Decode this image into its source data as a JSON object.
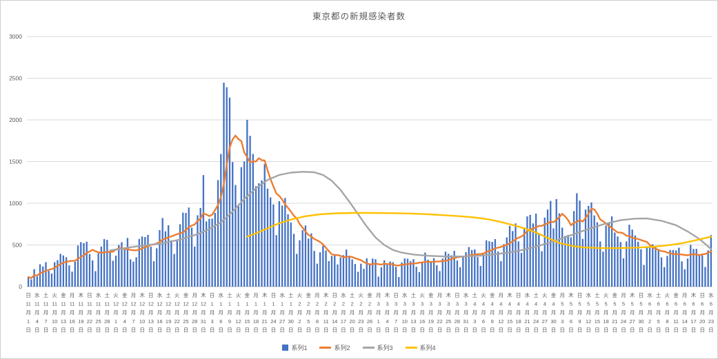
{
  "chart_data": {
    "type": "bar",
    "title": "東京都の新規感染者数",
    "legend_position": "bottom",
    "grid": "horizontal",
    "ylim": [
      0,
      3000
    ],
    "y_axis": {
      "ticks": [
        "0",
        "500",
        "1000",
        "1500",
        "2000",
        "2500",
        "3000"
      ]
    },
    "x_tick_labels": [
      "日|11|月|1|日",
      "水|11|月|4|日",
      "土|11|月|7|日",
      "火|11|月|10|日",
      "金|11|月|13|日",
      "月|11|月|16|日",
      "木|11|月|19|日",
      "日|11|月|22|日",
      "水|11|月|25|日",
      "土|11|月|28|日",
      "火|12|月|1|日",
      "金|12|月|4|日",
      "月|12|月|7|日",
      "木|12|月|10|日",
      "日|12|月|13|日",
      "水|12|月|16|日",
      "土|12|月|19|日",
      "火|12|月|22|日",
      "金|12|月|25|日",
      "月|12|月|28|日",
      "木|12|月|31|日",
      "日|1|月|3|日",
      "水|1|月|6|日",
      "土|1|月|9|日",
      "火|1|月|12|日",
      "金|1|月|15|日",
      "月|1|月|18|日",
      "木|1|月|21|日",
      "日|1|月|24|日",
      "水|1|月|27|日",
      "土|1|月|30|日",
      "火|2|月|2|日",
      "金|2|月|5|日",
      "月|2|月|8|日",
      "木|2|月|11|日",
      "日|2|月|14|日",
      "水|2|月|17|日",
      "土|2|月|20|日",
      "火|2|月|23|日",
      "金|2|月|26|日",
      "月|3|月|1|日",
      "木|3|月|4|日",
      "日|3|月|7|日",
      "水|3|月|10|日",
      "土|3|月|13|日",
      "火|3|月|16|日",
      "金|3|月|19|日",
      "月|3|月|22|日",
      "木|3|月|25|日",
      "日|3|月|28|日",
      "水|3|月|31|日",
      "土|4|月|3|日",
      "火|4|月|6|日",
      "金|4|月|9|日",
      "月|4|月|12|日",
      "木|4|月|15|日",
      "日|4|月|18|日",
      "水|4|月|21|日",
      "土|4|月|24|日",
      "火|4|月|27|日",
      "金|4|月|30|日",
      "月|5|月|3|日",
      "木|5|月|6|日",
      "日|5|月|9|日",
      "水|5|月|12|日",
      "土|5|月|15|日",
      "火|5|月|18|日",
      "金|5|月|21|日",
      "月|5|月|24|日",
      "木|5|月|27|日",
      "日|5|月|30|日",
      "水|6|月|2|日",
      "土|6|月|5|日",
      "火|6|月|8|日",
      "金|6|月|11|日",
      "月|6|月|14|日",
      "木|6|月|17|日",
      "日|6|月|20|日",
      "水|6|月|23|日"
    ],
    "x_tick_interval_days": 3,
    "series": [
      {
        "name": "系列1",
        "type": "bar",
        "color": "#4472C4",
        "values": [
          116,
          87,
          209,
          122,
          269,
          242,
          294,
          189,
          157,
          293,
          317,
          393,
          374,
          352,
          255,
          180,
          298,
          493,
          534,
          522,
          539,
          391,
          314,
          186,
          401,
          481,
          570,
          561,
          418,
          311,
          372,
          500,
          533,
          449,
          584,
          327,
          299,
          352,
          572,
          602,
          595,
          621,
          480,
          305,
          460,
          678,
          822,
          664,
          736,
          556,
          392,
          563,
          748,
          888,
          884,
          949,
          708,
          481,
          856,
          944,
          1337,
          783,
          814,
          816,
          884,
          1278,
          1591,
          2447,
          2392,
          2268,
          1494,
          1219,
          970,
          1433,
          1502,
          2001,
          1809,
          1592,
          1204,
          1240,
          1274,
          1471,
          1175,
          1070,
          986,
          618,
          1026,
          973,
          1064,
          868,
          769,
          633,
          393,
          556,
          676,
          734,
          577,
          639,
          429,
          276,
          412,
          491,
          434,
          307,
          369,
          371,
          266,
          350,
          378,
          445,
          353,
          327,
          272,
          178,
          275,
          213,
          340,
          270,
          337,
          329,
          121,
          232,
          316,
          279,
          301,
          293,
          237,
          116,
          290,
          340,
          335,
          304,
          330,
          239,
          175,
          300,
          409,
          323,
          303,
          342,
          256,
          187,
          337,
          420,
          394,
          376,
          430,
          313,
          234,
          364,
          414,
          475,
          440,
          446,
          355,
          249,
          399,
          555,
          545,
          537,
          570,
          421,
          306,
          510,
          591,
          729,
          667,
          759,
          543,
          405,
          711,
          843,
          861,
          759,
          876,
          635,
          425,
          828,
          925,
          1027,
          698,
          1050,
          879,
          708,
          609,
          621,
          591,
          907,
          1121,
          1032,
          573,
          925,
          969,
          1010,
          854,
          772,
          542,
          419,
          732,
          766,
          843,
          649,
          602,
          535,
          340,
          542,
          743,
          684,
          614,
          539,
          448,
          260,
          471,
          487,
          508,
          472,
          436,
          351,
          235,
          369,
          440,
          439,
          435,
          467,
          304,
          209,
          337,
          501,
          452,
          453,
          388,
          376,
          236,
          435,
          619
        ]
      },
      {
        "name": "系列2",
        "type": "line",
        "color": "#ED7D31",
        "derivation": "7-day trailing moving average of 系列1",
        "ma_window": 7
      },
      {
        "name": "系列3",
        "type": "line",
        "color": "#A5A5A5",
        "points": [
          [
            28,
            435
          ],
          [
            34,
            468
          ],
          [
            40,
            495
          ],
          [
            46,
            520
          ],
          [
            52,
            565
          ],
          [
            58,
            630
          ],
          [
            62,
            690
          ],
          [
            66,
            770
          ],
          [
            70,
            900
          ],
          [
            74,
            1050
          ],
          [
            78,
            1180
          ],
          [
            82,
            1280
          ],
          [
            86,
            1340
          ],
          [
            90,
            1368
          ],
          [
            94,
            1378
          ],
          [
            98,
            1372
          ],
          [
            101,
            1340
          ],
          [
            104,
            1270
          ],
          [
            107,
            1160
          ],
          [
            110,
            1020
          ],
          [
            113,
            870
          ],
          [
            116,
            720
          ],
          [
            119,
            590
          ],
          [
            122,
            500
          ],
          [
            125,
            440
          ],
          [
            128,
            408
          ],
          [
            132,
            385
          ],
          [
            137,
            370
          ],
          [
            143,
            362
          ],
          [
            149,
            362
          ],
          [
            155,
            372
          ],
          [
            161,
            392
          ],
          [
            167,
            422
          ],
          [
            173,
            470
          ],
          [
            179,
            532
          ],
          [
            185,
            604
          ],
          [
            191,
            680
          ],
          [
            197,
            747
          ],
          [
            203,
            797
          ],
          [
            208,
            816
          ],
          [
            212,
            818
          ],
          [
            217,
            790
          ],
          [
            222,
            737
          ],
          [
            226,
            662
          ],
          [
            230,
            572
          ],
          [
            234,
            452
          ]
        ]
      },
      {
        "name": "系列4",
        "type": "line",
        "color": "#FFC000",
        "points": [
          [
            75,
            600
          ],
          [
            78,
            640
          ],
          [
            82,
            700
          ],
          [
            86,
            760
          ],
          [
            90,
            805
          ],
          [
            95,
            845
          ],
          [
            100,
            868
          ],
          [
            106,
            880
          ],
          [
            112,
            884
          ],
          [
            118,
            884
          ],
          [
            124,
            882
          ],
          [
            130,
            878
          ],
          [
            136,
            870
          ],
          [
            142,
            858
          ],
          [
            148,
            845
          ],
          [
            153,
            830
          ],
          [
            158,
            805
          ],
          [
            162,
            775
          ],
          [
            166,
            740
          ],
          [
            170,
            700
          ],
          [
            174,
            650
          ],
          [
            178,
            585
          ],
          [
            182,
            525
          ],
          [
            186,
            490
          ],
          [
            190,
            472
          ],
          [
            196,
            462
          ],
          [
            202,
            462
          ],
          [
            208,
            468
          ],
          [
            214,
            478
          ],
          [
            219,
            495
          ],
          [
            224,
            520
          ],
          [
            228,
            550
          ],
          [
            231,
            575
          ],
          [
            234,
            600
          ]
        ]
      }
    ]
  }
}
